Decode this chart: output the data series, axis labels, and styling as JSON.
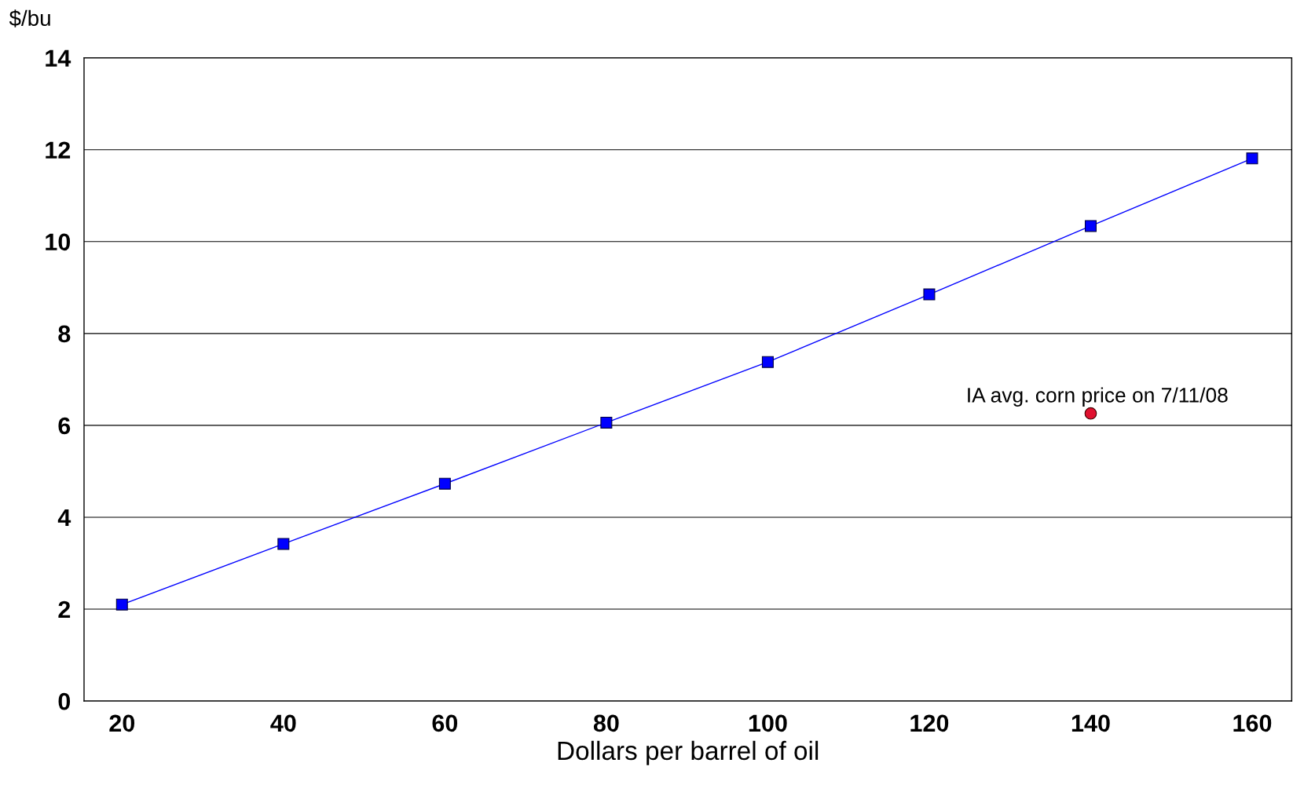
{
  "chart_data": {
    "type": "line",
    "xlabel": "Dollars per barrel of oil",
    "ylabel": "$/bu",
    "categories": [
      "20",
      "40",
      "60",
      "80",
      "100",
      "120",
      "140",
      "160"
    ],
    "series": [
      {
        "color": "#0000ff",
        "marker": "square",
        "values": [
          2.1,
          3.42,
          4.73,
          6.06,
          7.38,
          8.85,
          10.34,
          11.81
        ]
      },
      {
        "type": "scatter",
        "color": "#e0102f",
        "marker": "circle",
        "x": [
          "140"
        ],
        "values": [
          6.26
        ]
      }
    ],
    "annotations": [
      {
        "text": "IA avg. corn price on 7/11/08",
        "x": "140",
        "y": 6.26
      }
    ],
    "ylim": [
      0,
      14
    ],
    "yticks": [
      0,
      2,
      4,
      6,
      8,
      10,
      12,
      14
    ],
    "grid": "y",
    "legend": false
  }
}
